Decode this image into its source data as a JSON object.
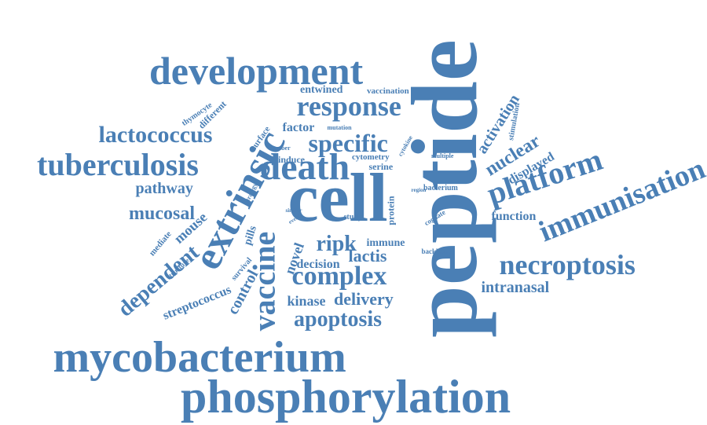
{
  "word_cloud": {
    "color": "#4a7fb5",
    "words": [
      {
        "text": "peptide",
        "weight": 100,
        "orientation": "vertical"
      },
      {
        "text": "cell",
        "weight": 80,
        "orientation": "horizontal"
      },
      {
        "text": "phosphorylation",
        "weight": 70,
        "orientation": "horizontal"
      },
      {
        "text": "mycobacterium",
        "weight": 62,
        "orientation": "horizontal"
      },
      {
        "text": "development",
        "weight": 58,
        "orientation": "horizontal"
      },
      {
        "text": "extrinsic",
        "weight": 55,
        "orientation": "diagonal"
      },
      {
        "text": "vaccine",
        "weight": 50,
        "orientation": "vertical"
      },
      {
        "text": "tuberculosis",
        "weight": 50,
        "orientation": "horizontal"
      },
      {
        "text": "death",
        "weight": 48,
        "orientation": "horizontal"
      },
      {
        "text": "immunisation",
        "weight": 45,
        "orientation": "diagonal"
      },
      {
        "text": "platform",
        "weight": 44,
        "orientation": "diagonal"
      },
      {
        "text": "necroptosis",
        "weight": 42,
        "orientation": "horizontal"
      },
      {
        "text": "response",
        "weight": 40,
        "orientation": "horizontal"
      },
      {
        "text": "complex",
        "weight": 38,
        "orientation": "horizontal"
      },
      {
        "text": "specific",
        "weight": 36,
        "orientation": "horizontal"
      },
      {
        "text": "lactococcus",
        "weight": 34,
        "orientation": "horizontal"
      },
      {
        "text": "apoptosis",
        "weight": 32,
        "orientation": "horizontal"
      },
      {
        "text": "dependent",
        "weight": 30,
        "orientation": "diagonal"
      },
      {
        "text": "ripk",
        "weight": 30,
        "orientation": "horizontal"
      },
      {
        "text": "mucosal",
        "weight": 26,
        "orientation": "horizontal"
      },
      {
        "text": "nuclear",
        "weight": 24,
        "orientation": "diagonal"
      },
      {
        "text": "delivery",
        "weight": 24,
        "orientation": "horizontal"
      },
      {
        "text": "lactis",
        "weight": 24,
        "orientation": "horizontal"
      },
      {
        "text": "pathway",
        "weight": 22,
        "orientation": "horizontal"
      },
      {
        "text": "activation",
        "weight": 22,
        "orientation": "diagonal"
      },
      {
        "text": "control",
        "weight": 22,
        "orientation": "vertical"
      },
      {
        "text": "intranasal",
        "weight": 20,
        "orientation": "horizontal"
      },
      {
        "text": "kinase",
        "weight": 20,
        "orientation": "horizontal"
      },
      {
        "text": "mouse",
        "weight": 20,
        "orientation": "diagonal"
      },
      {
        "text": "novel",
        "weight": 18,
        "orientation": "vertical"
      },
      {
        "text": "decision",
        "weight": 18,
        "orientation": "horizontal"
      },
      {
        "text": "streptococcus",
        "weight": 18,
        "orientation": "diagonal"
      },
      {
        "text": "displayed",
        "weight": 18,
        "orientation": "diagonal"
      },
      {
        "text": "factor",
        "weight": 18,
        "orientation": "horizontal"
      },
      {
        "text": "function",
        "weight": 16,
        "orientation": "horizontal"
      },
      {
        "text": "entwined",
        "weight": 16,
        "orientation": "horizontal"
      },
      {
        "text": "immune",
        "weight": 16,
        "orientation": "horizontal"
      },
      {
        "text": "pills",
        "weight": 15,
        "orientation": "vertical"
      },
      {
        "text": "induce",
        "weight": 14,
        "orientation": "horizontal"
      },
      {
        "text": "protein",
        "weight": 14,
        "orientation": "vertical"
      },
      {
        "text": "serine",
        "weight": 14,
        "orientation": "horizontal"
      },
      {
        "text": "different",
        "weight": 14,
        "orientation": "diagonal"
      },
      {
        "text": "surface",
        "weight": 13,
        "orientation": "diagonal"
      },
      {
        "text": "cytometry",
        "weight": 13,
        "orientation": "horizontal"
      },
      {
        "text": "vaccination",
        "weight": 13,
        "orientation": "horizontal"
      },
      {
        "text": "survival",
        "weight": 13,
        "orientation": "diagonal"
      },
      {
        "text": "stimulation",
        "weight": 12,
        "orientation": "vertical"
      },
      {
        "text": "mediate",
        "weight": 12,
        "orientation": "diagonal"
      },
      {
        "text": "thymocyte",
        "weight": 12,
        "orientation": "diagonal"
      },
      {
        "text": "bacterium",
        "weight": 12,
        "orientation": "horizontal"
      },
      {
        "text": "cognate",
        "weight": 11,
        "orientation": "diagonal"
      },
      {
        "text": "backbone",
        "weight": 11,
        "orientation": "horizontal"
      },
      {
        "text": "study",
        "weight": 11,
        "orientation": "horizontal"
      },
      {
        "text": "structure",
        "weight": 10,
        "orientation": "diagonal"
      },
      {
        "text": "strategy",
        "weight": 10,
        "orientation": "diagonal"
      },
      {
        "text": "mutation",
        "weight": 10,
        "orientation": "horizontal"
      },
      {
        "text": "number",
        "weight": 10,
        "orientation": "horizontal"
      },
      {
        "text": "multiple",
        "weight": 10,
        "orientation": "horizontal"
      },
      {
        "text": "cytokine",
        "weight": 10,
        "orientation": "diagonal"
      },
      {
        "text": "similar",
        "weight": 9,
        "orientation": "horizontal"
      },
      {
        "text": "region",
        "weight": 9,
        "orientation": "horizontal"
      },
      {
        "text": "event",
        "weight": 8,
        "orientation": "diagonal"
      }
    ]
  }
}
